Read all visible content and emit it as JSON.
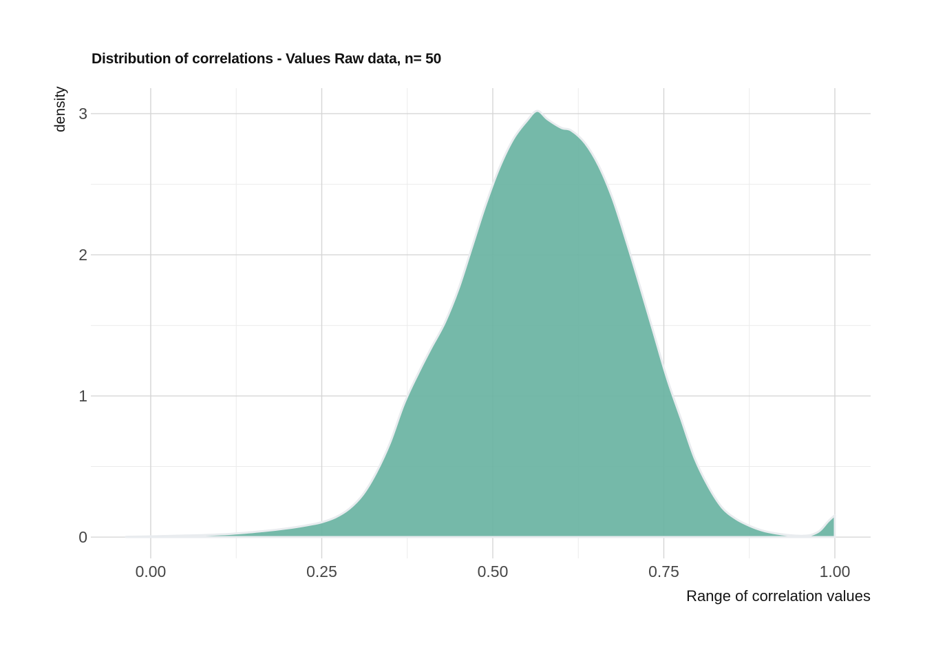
{
  "title": "Distribution of correlations - Values Raw data, n= 50",
  "chart_data": {
    "type": "area",
    "title": "Distribution of correlations - Values Raw data, n= 50",
    "xlabel": "Range of correlation values",
    "ylabel": "density",
    "legend": "none",
    "grid": "on",
    "xlim": [
      -0.0875,
      1.0523
    ],
    "ylim": [
      -0.151,
      3.181
    ],
    "x_ticks": [
      {
        "v": 0.0,
        "label": "0.00"
      },
      {
        "v": 0.25,
        "label": "0.25"
      },
      {
        "v": 0.5,
        "label": "0.50"
      },
      {
        "v": 0.75,
        "label": "0.75"
      },
      {
        "v": 1.0,
        "label": "1.00"
      }
    ],
    "y_ticks": [
      {
        "v": 0,
        "label": "0"
      },
      {
        "v": 1,
        "label": "1"
      },
      {
        "v": 2,
        "label": "2"
      },
      {
        "v": 3,
        "label": "3"
      }
    ],
    "x_minor_ticks": [
      0.125,
      0.375,
      0.625,
      0.875
    ],
    "y_minor_ticks": [
      0.5,
      1.5,
      2.5
    ],
    "clip_max_x": 1.0,
    "series": [
      {
        "name": "density",
        "x": [
          -0.036,
          0.0,
          0.04,
          0.08,
          0.12,
          0.16,
          0.2,
          0.23,
          0.25,
          0.27,
          0.29,
          0.31,
          0.33,
          0.35,
          0.37,
          0.39,
          0.41,
          0.43,
          0.45,
          0.47,
          0.49,
          0.51,
          0.53,
          0.55,
          0.565,
          0.58,
          0.6,
          0.615,
          0.635,
          0.655,
          0.675,
          0.695,
          0.715,
          0.735,
          0.755,
          0.775,
          0.795,
          0.815,
          0.835,
          0.855,
          0.875,
          0.895,
          0.915,
          0.935,
          0.952,
          0.965,
          0.978,
          0.99,
          1.0
        ],
        "y": [
          0.002,
          0.005,
          0.01,
          0.015,
          0.024,
          0.04,
          0.062,
          0.085,
          0.105,
          0.14,
          0.2,
          0.3,
          0.46,
          0.67,
          0.94,
          1.15,
          1.34,
          1.52,
          1.76,
          2.06,
          2.36,
          2.62,
          2.82,
          2.95,
          3.02,
          2.96,
          2.9,
          2.88,
          2.79,
          2.63,
          2.4,
          2.1,
          1.78,
          1.45,
          1.12,
          0.84,
          0.56,
          0.36,
          0.21,
          0.13,
          0.08,
          0.045,
          0.025,
          0.013,
          0.009,
          0.015,
          0.045,
          0.11,
          0.155
        ]
      }
    ],
    "colors": {
      "fill": "#69b3a2",
      "fill_opacity": 0.92,
      "stroke": "#e9ecef",
      "grid_major": "#d5d5d5",
      "grid_minor": "#ebebeb",
      "tick_text": "#454545",
      "title_text": "#111111"
    }
  }
}
